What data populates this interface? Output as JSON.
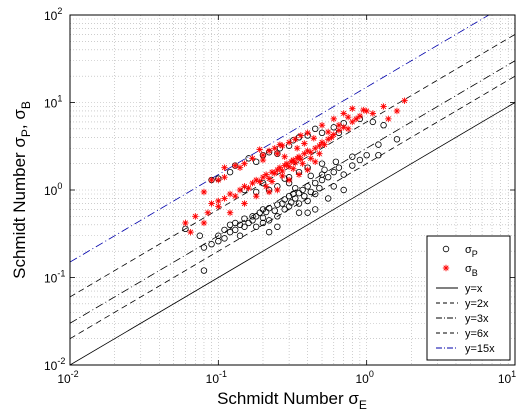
{
  "chart_data": {
    "type": "scatter",
    "title": "",
    "xlabel": {
      "text": "Schmidt Number σ",
      "sub": "E"
    },
    "ylabel": {
      "text": "Schmidt Number σ",
      "sub1": "P",
      "sep": ", σ",
      "sub2": "B"
    },
    "xscale": "log",
    "yscale": "log",
    "xlim": [
      0.01,
      10
    ],
    "ylim": [
      0.01,
      100
    ],
    "grid": true,
    "legend_position": "bottom-right",
    "x_ticks": [
      {
        "base": "10",
        "exp": "-2",
        "value": 0.01
      },
      {
        "base": "10",
        "exp": "-1",
        "value": 0.1
      },
      {
        "base": "10",
        "exp": "0",
        "value": 1
      },
      {
        "base": "10",
        "exp": "1",
        "value": 10
      }
    ],
    "y_ticks": [
      {
        "base": "10",
        "exp": "-2",
        "value": 0.01
      },
      {
        "base": "10",
        "exp": "-1",
        "value": 0.1
      },
      {
        "base": "10",
        "exp": "0",
        "value": 1
      },
      {
        "base": "10",
        "exp": "1",
        "value": 10
      },
      {
        "base": "10",
        "exp": "2",
        "value": 100
      }
    ],
    "series": [
      {
        "name": "σ",
        "name_sub": "P",
        "marker": "circle",
        "color": "#000000",
        "points": [
          [
            0.06,
            0.36
          ],
          [
            0.075,
            0.3
          ],
          [
            0.08,
            0.22
          ],
          [
            0.08,
            0.12
          ],
          [
            0.09,
            0.24
          ],
          [
            0.1,
            0.3
          ],
          [
            0.1,
            0.26
          ],
          [
            0.11,
            0.28
          ],
          [
            0.11,
            0.35
          ],
          [
            0.12,
            0.33
          ],
          [
            0.12,
            0.4
          ],
          [
            0.13,
            0.35
          ],
          [
            0.13,
            0.42
          ],
          [
            0.14,
            0.4
          ],
          [
            0.14,
            0.3
          ],
          [
            0.15,
            0.38
          ],
          [
            0.15,
            0.47
          ],
          [
            0.16,
            0.42
          ],
          [
            0.17,
            0.45
          ],
          [
            0.17,
            0.5
          ],
          [
            0.18,
            0.38
          ],
          [
            0.18,
            0.5
          ],
          [
            0.19,
            0.55
          ],
          [
            0.2,
            0.48
          ],
          [
            0.2,
            0.6
          ],
          [
            0.21,
            0.56
          ],
          [
            0.22,
            0.62
          ],
          [
            0.22,
            0.45
          ],
          [
            0.24,
            0.58
          ],
          [
            0.25,
            0.68
          ],
          [
            0.25,
            0.5
          ],
          [
            0.27,
            0.7
          ],
          [
            0.28,
            0.6
          ],
          [
            0.28,
            0.78
          ],
          [
            0.3,
            0.65
          ],
          [
            0.3,
            0.85
          ],
          [
            0.31,
            0.72
          ],
          [
            0.32,
            0.9
          ],
          [
            0.33,
            0.8
          ],
          [
            0.35,
            0.92
          ],
          [
            0.35,
            0.7
          ],
          [
            0.37,
            1.0
          ],
          [
            0.38,
            0.85
          ],
          [
            0.4,
            1.1
          ],
          [
            0.4,
            0.75
          ],
          [
            0.42,
            0.95
          ],
          [
            0.45,
            1.2
          ],
          [
            0.45,
            0.6
          ],
          [
            0.48,
            1.05
          ],
          [
            0.5,
            1.3
          ],
          [
            0.5,
            1.5
          ],
          [
            0.55,
            1.4
          ],
          [
            0.55,
            0.8
          ],
          [
            0.6,
            1.6
          ],
          [
            0.6,
            1.1
          ],
          [
            0.65,
            1.8
          ],
          [
            0.7,
            1.5
          ],
          [
            0.8,
            1.9
          ],
          [
            0.8,
            2.4
          ],
          [
            0.9,
            2.2
          ],
          [
            1.0,
            2.5
          ],
          [
            1.2,
            3.3
          ],
          [
            1.2,
            2.5
          ],
          [
            1.3,
            5.5
          ],
          [
            1.6,
            3.8
          ],
          [
            0.22,
            0.33
          ],
          [
            0.2,
            0.42
          ],
          [
            0.25,
            0.38
          ],
          [
            0.35,
            0.55
          ],
          [
            0.45,
            0.9
          ],
          [
            0.7,
            1.0
          ],
          [
            0.4,
            0.55
          ],
          [
            0.09,
            1.3
          ],
          [
            0.1,
            1.35
          ],
          [
            0.13,
            1.9
          ],
          [
            0.16,
            2.3
          ],
          [
            0.18,
            2.1
          ],
          [
            0.2,
            2.5
          ],
          [
            0.22,
            2.7
          ],
          [
            0.25,
            2.6
          ],
          [
            0.26,
            3.0
          ],
          [
            0.3,
            3.2
          ],
          [
            0.32,
            3.7
          ],
          [
            0.35,
            4.0
          ],
          [
            0.4,
            4.2
          ],
          [
            0.45,
            5.0
          ],
          [
            0.5,
            4.5
          ],
          [
            0.6,
            5.2
          ],
          [
            0.7,
            5.8
          ],
          [
            0.9,
            6.5
          ],
          [
            1.1,
            6.0
          ],
          [
            0.65,
            4.5
          ],
          [
            0.12,
            1.6
          ],
          [
            0.15,
            1.0
          ],
          [
            0.2,
            1.2
          ],
          [
            0.25,
            1.1
          ],
          [
            0.3,
            1.4
          ],
          [
            0.35,
            1.6
          ],
          [
            0.4,
            1.8
          ],
          [
            0.5,
            2.0
          ],
          [
            0.3,
            1.2
          ],
          [
            0.28,
            1.35
          ],
          [
            0.22,
            1.0
          ],
          [
            0.18,
            0.95
          ],
          [
            0.33,
            1.05
          ],
          [
            0.42,
            1.45
          ],
          [
            0.52,
            1.7
          ],
          [
            0.62,
            2.1
          ]
        ]
      },
      {
        "name": "σ",
        "name_sub": "B",
        "marker": "asterisk",
        "color": "#ff0000",
        "points": [
          [
            0.06,
            0.42
          ],
          [
            0.065,
            0.33
          ],
          [
            0.08,
            0.42
          ],
          [
            0.085,
            0.55
          ],
          [
            0.09,
            0.7
          ],
          [
            0.1,
            0.75
          ],
          [
            0.11,
            0.8
          ],
          [
            0.12,
            0.9
          ],
          [
            0.13,
            0.85
          ],
          [
            0.14,
            1.0
          ],
          [
            0.15,
            1.1
          ],
          [
            0.16,
            1.05
          ],
          [
            0.17,
            1.2
          ],
          [
            0.18,
            1.3
          ],
          [
            0.19,
            1.25
          ],
          [
            0.2,
            1.4
          ],
          [
            0.21,
            1.5
          ],
          [
            0.22,
            1.35
          ],
          [
            0.23,
            1.6
          ],
          [
            0.24,
            1.55
          ],
          [
            0.25,
            1.7
          ],
          [
            0.26,
            1.8
          ],
          [
            0.27,
            1.65
          ],
          [
            0.28,
            1.9
          ],
          [
            0.29,
            2.0
          ],
          [
            0.3,
            1.85
          ],
          [
            0.31,
            2.1
          ],
          [
            0.32,
            2.2
          ],
          [
            0.33,
            2.05
          ],
          [
            0.34,
            2.3
          ],
          [
            0.35,
            2.4
          ],
          [
            0.36,
            2.25
          ],
          [
            0.38,
            2.6
          ],
          [
            0.4,
            2.8
          ],
          [
            0.42,
            2.7
          ],
          [
            0.45,
            3.0
          ],
          [
            0.48,
            3.2
          ],
          [
            0.5,
            3.5
          ],
          [
            0.52,
            3.3
          ],
          [
            0.55,
            3.8
          ],
          [
            0.58,
            4.0
          ],
          [
            0.6,
            4.3
          ],
          [
            0.65,
            4.8
          ],
          [
            0.7,
            5.2
          ],
          [
            0.75,
            5.0
          ],
          [
            0.8,
            6.0
          ],
          [
            0.85,
            6.5
          ],
          [
            0.9,
            7.0
          ],
          [
            1.0,
            8.0
          ],
          [
            1.1,
            7.5
          ],
          [
            1.3,
            9.0
          ],
          [
            1.4,
            6.5
          ],
          [
            1.6,
            8.0
          ],
          [
            1.8,
            10.5
          ],
          [
            0.12,
            0.55
          ],
          [
            0.15,
            0.7
          ],
          [
            0.18,
            0.85
          ],
          [
            0.22,
            0.95
          ],
          [
            0.25,
            1.0
          ],
          [
            0.3,
            1.3
          ],
          [
            0.35,
            1.5
          ],
          [
            0.4,
            1.7
          ],
          [
            0.45,
            2.1
          ],
          [
            0.1,
            1.3
          ],
          [
            0.11,
            1.4
          ],
          [
            0.13,
            1.9
          ],
          [
            0.14,
            1.8
          ],
          [
            0.17,
            2.3
          ],
          [
            0.2,
            2.5
          ],
          [
            0.22,
            2.8
          ],
          [
            0.24,
            3.0
          ],
          [
            0.27,
            3.2
          ],
          [
            0.3,
            3.5
          ],
          [
            0.33,
            3.8
          ],
          [
            0.36,
            4.2
          ],
          [
            0.4,
            4.5
          ],
          [
            0.5,
            5.5
          ],
          [
            0.6,
            6.5
          ],
          [
            0.7,
            7.5
          ],
          [
            0.8,
            8.5
          ],
          [
            0.15,
            2.0
          ],
          [
            0.19,
            2.9
          ],
          [
            0.26,
            3.3
          ],
          [
            0.08,
            0.95
          ],
          [
            0.09,
            1.3
          ],
          [
            0.11,
            1.8
          ],
          [
            0.28,
            2.4
          ],
          [
            0.34,
            3.0
          ],
          [
            0.38,
            3.4
          ],
          [
            0.44,
            3.9
          ],
          [
            0.55,
            4.6
          ],
          [
            0.65,
            5.5
          ],
          [
            0.75,
            6.8
          ],
          [
            0.95,
            8.2
          ],
          [
            0.21,
            1.1
          ],
          [
            0.23,
            1.25
          ],
          [
            0.27,
            1.45
          ],
          [
            0.32,
            1.75
          ],
          [
            0.37,
            2.0
          ],
          [
            0.42,
            2.3
          ],
          [
            0.48,
            2.6
          ],
          [
            0.1,
            0.65
          ],
          [
            0.07,
            0.5
          ],
          [
            0.2,
            2.2
          ],
          [
            0.25,
            2.6
          ]
        ]
      }
    ],
    "reference_lines": [
      {
        "name": "y=x",
        "factor": 1,
        "dash": "solid",
        "color": "#000000"
      },
      {
        "name": "y=2x",
        "factor": 2,
        "dash": "dashed",
        "color": "#000000"
      },
      {
        "name": "y=3x",
        "factor": 3,
        "dash": "dashdot",
        "color": "#000000"
      },
      {
        "name": "y=6x",
        "factor": 6,
        "dash": "dashed",
        "color": "#000000"
      },
      {
        "name": "y=15x",
        "factor": 15,
        "dash": "dashdot",
        "color": "#0000aa"
      }
    ]
  }
}
